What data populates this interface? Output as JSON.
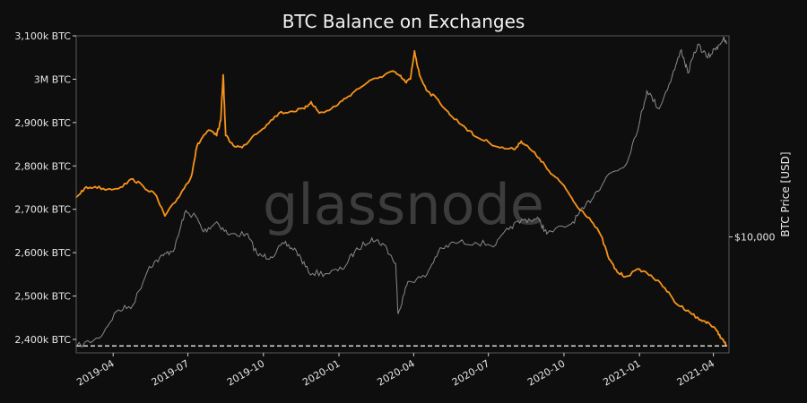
{
  "chart_data": {
    "type": "line",
    "title": "BTC Balance on Exchanges",
    "watermark": "glassnode",
    "xlabel": "",
    "ylabel": "",
    "y2label": "BTC Price [USD]",
    "grid": false,
    "x_ticks": [
      "2019-04",
      "2019-07",
      "2019-10",
      "2020-01",
      "2020-04",
      "2020-07",
      "2020-10",
      "2021-01",
      "2021-04"
    ],
    "y_ticks": [
      {
        "value": 2400000,
        "label": "2,400k BTC"
      },
      {
        "value": 2500000,
        "label": "2,500k BTC"
      },
      {
        "value": 2600000,
        "label": "2,600k BTC"
      },
      {
        "value": 2700000,
        "label": "2,700k BTC"
      },
      {
        "value": 2800000,
        "label": "2,800k BTC"
      },
      {
        "value": 2900000,
        "label": "2,900k BTC"
      },
      {
        "value": 3000000,
        "label": "3M BTC"
      },
      {
        "value": 3100000,
        "label": "3,100k BTC"
      }
    ],
    "y2_ticks": [
      {
        "value": 10000,
        "label": "$10,000"
      }
    ],
    "ylim": [
      2369000,
      3100000
    ],
    "y2_scale": "log",
    "y2lim": [
      3400,
      65000
    ],
    "xlim": [
      "2019-02-15",
      "2021-04-20"
    ],
    "hline": {
      "value": 2385000,
      "style": "dashed",
      "color": "#ffffff"
    },
    "colors": {
      "balance": "#f7931a",
      "price": "#8a8a8a"
    },
    "series": [
      {
        "key": "balance",
        "points": [
          [
            "2019-02-15",
            2728000
          ],
          [
            "2019-02-25",
            2748000
          ],
          [
            "2019-03-10",
            2752000
          ],
          [
            "2019-03-25",
            2746000
          ],
          [
            "2019-04-10",
            2751000
          ],
          [
            "2019-04-25",
            2770000
          ],
          [
            "2019-05-08",
            2752000
          ],
          [
            "2019-05-22",
            2735000
          ],
          [
            "2019-06-03",
            2685000
          ],
          [
            "2019-06-15",
            2715000
          ],
          [
            "2019-06-25",
            2745000
          ],
          [
            "2019-07-05",
            2775000
          ],
          [
            "2019-07-12",
            2845000
          ],
          [
            "2019-07-20",
            2870000
          ],
          [
            "2019-07-28",
            2882000
          ],
          [
            "2019-08-05",
            2870000
          ],
          [
            "2019-08-10",
            2905000
          ],
          [
            "2019-08-13",
            3010000
          ],
          [
            "2019-08-16",
            2870000
          ],
          [
            "2019-08-25",
            2848000
          ],
          [
            "2019-09-05",
            2842000
          ],
          [
            "2019-09-20",
            2872000
          ],
          [
            "2019-10-05",
            2895000
          ],
          [
            "2019-10-20",
            2922000
          ],
          [
            "2019-11-05",
            2926000
          ],
          [
            "2019-11-20",
            2932000
          ],
          [
            "2019-11-28",
            2948000
          ],
          [
            "2019-12-08",
            2922000
          ],
          [
            "2019-12-20",
            2928000
          ],
          [
            "2020-01-05",
            2950000
          ],
          [
            "2020-01-20",
            2972000
          ],
          [
            "2020-02-05",
            2993000
          ],
          [
            "2020-02-20",
            3005000
          ],
          [
            "2020-03-05",
            3018000
          ],
          [
            "2020-03-15",
            3008000
          ],
          [
            "2020-03-22",
            2993000
          ],
          [
            "2020-03-28",
            3000000
          ],
          [
            "2020-04-02",
            3065000
          ],
          [
            "2020-04-08",
            3010000
          ],
          [
            "2020-04-18",
            2972000
          ],
          [
            "2020-05-01",
            2952000
          ],
          [
            "2020-05-15",
            2918000
          ],
          [
            "2020-06-01",
            2892000
          ],
          [
            "2020-06-15",
            2868000
          ],
          [
            "2020-07-01",
            2855000
          ],
          [
            "2020-07-15",
            2842000
          ],
          [
            "2020-08-01",
            2838000
          ],
          [
            "2020-08-10",
            2857000
          ],
          [
            "2020-08-20",
            2840000
          ],
          [
            "2020-09-01",
            2818000
          ],
          [
            "2020-09-15",
            2782000
          ],
          [
            "2020-10-01",
            2755000
          ],
          [
            "2020-10-15",
            2712000
          ],
          [
            "2020-11-01",
            2680000
          ],
          [
            "2020-11-15",
            2640000
          ],
          [
            "2020-11-25",
            2585000
          ],
          [
            "2020-12-05",
            2555000
          ],
          [
            "2020-12-15",
            2545000
          ],
          [
            "2021-01-01",
            2562000
          ],
          [
            "2021-01-15",
            2548000
          ],
          [
            "2021-02-01",
            2518000
          ],
          [
            "2021-02-15",
            2482000
          ],
          [
            "2021-03-01",
            2467000
          ],
          [
            "2021-03-15",
            2445000
          ],
          [
            "2021-03-25",
            2440000
          ],
          [
            "2021-04-05",
            2420000
          ],
          [
            "2021-04-12",
            2400000
          ],
          [
            "2021-04-17",
            2385000
          ]
        ]
      },
      {
        "key": "price",
        "points": [
          [
            "2019-02-15",
            3600
          ],
          [
            "2019-03-15",
            3900
          ],
          [
            "2019-04-05",
            5000
          ],
          [
            "2019-04-25",
            5300
          ],
          [
            "2019-05-15",
            7600
          ],
          [
            "2019-06-01",
            8400
          ],
          [
            "2019-06-15",
            9000
          ],
          [
            "2019-06-27",
            12500
          ],
          [
            "2019-07-10",
            12200
          ],
          [
            "2019-07-20",
            10500
          ],
          [
            "2019-08-05",
            11500
          ],
          [
            "2019-08-20",
            10200
          ],
          [
            "2019-09-10",
            10300
          ],
          [
            "2019-09-25",
            8400
          ],
          [
            "2019-10-10",
            8300
          ],
          [
            "2019-10-26",
            9400
          ],
          [
            "2019-11-10",
            8800
          ],
          [
            "2019-11-25",
            7200
          ],
          [
            "2019-12-15",
            7100
          ],
          [
            "2020-01-05",
            7400
          ],
          [
            "2020-01-20",
            8700
          ],
          [
            "2020-02-10",
            9900
          ],
          [
            "2020-02-25",
            9300
          ],
          [
            "2020-03-10",
            7800
          ],
          [
            "2020-03-13",
            4900
          ],
          [
            "2020-03-25",
            6600
          ],
          [
            "2020-04-15",
            6900
          ],
          [
            "2020-05-01",
            8700
          ],
          [
            "2020-05-20",
            9500
          ],
          [
            "2020-06-15",
            9500
          ],
          [
            "2020-07-10",
            9300
          ],
          [
            "2020-07-28",
            11000
          ],
          [
            "2020-08-15",
            11800
          ],
          [
            "2020-09-01",
            11700
          ],
          [
            "2020-09-10",
            10300
          ],
          [
            "2020-10-10",
            11300
          ],
          [
            "2020-10-25",
            13000
          ],
          [
            "2020-11-10",
            15300
          ],
          [
            "2020-11-25",
            18000
          ],
          [
            "2020-12-15",
            19500
          ],
          [
            "2021-01-01",
            29000
          ],
          [
            "2021-01-10",
            39000
          ],
          [
            "2021-01-25",
            33000
          ],
          [
            "2021-02-10",
            45000
          ],
          [
            "2021-02-21",
            57000
          ],
          [
            "2021-03-01",
            46000
          ],
          [
            "2021-03-13",
            60000
          ],
          [
            "2021-03-25",
            53000
          ],
          [
            "2021-04-05",
            58500
          ],
          [
            "2021-04-13",
            63000
          ],
          [
            "2021-04-17",
            60500
          ]
        ]
      }
    ]
  }
}
